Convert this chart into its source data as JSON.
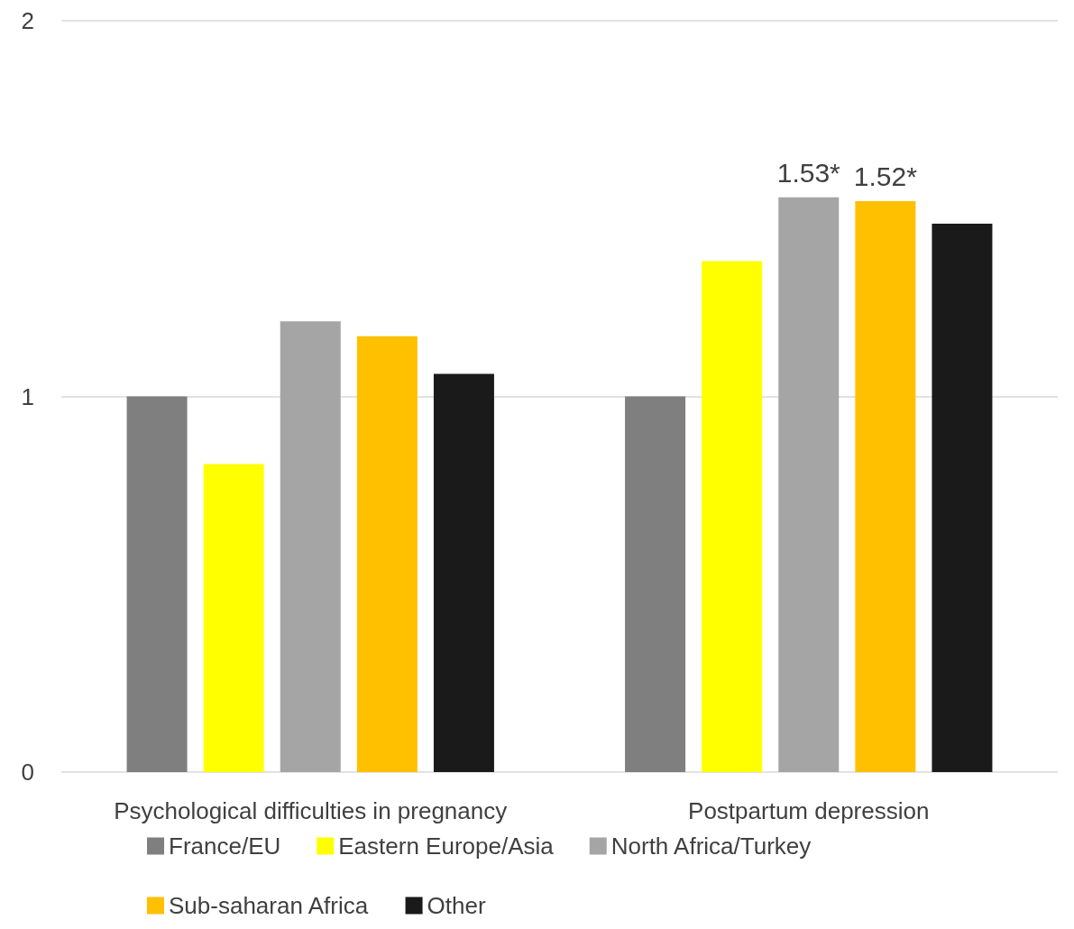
{
  "chart_data": {
    "type": "bar",
    "categories": [
      "Psychological difficulties in pregnancy",
      "Postpartum depression"
    ],
    "series": [
      {
        "name": "France/EU",
        "color": "#7f7f7f",
        "values": [
          1.0,
          1.0
        ]
      },
      {
        "name": "Eastern Europe/Asia",
        "color": "#ffff00",
        "values": [
          0.82,
          1.36
        ]
      },
      {
        "name": "North Africa/Turkey",
        "color": "#a5a5a5",
        "values": [
          1.2,
          1.53
        ],
        "value_labels": [
          null,
          "1.53*"
        ]
      },
      {
        "name": "Sub-saharan Africa",
        "color": "#ffc000",
        "values": [
          1.16,
          1.52
        ],
        "value_labels": [
          null,
          "1.52*"
        ]
      },
      {
        "name": "Other",
        "color": "#1a1a1a",
        "values": [
          1.06,
          1.46
        ]
      }
    ],
    "ylim": [
      0,
      2
    ],
    "yticks": [
      0,
      1,
      2
    ],
    "grid": "y",
    "legend": "bottom"
  }
}
